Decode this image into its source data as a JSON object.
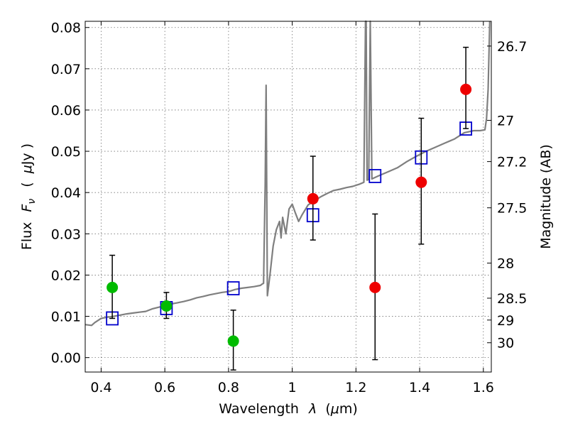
{
  "chart_data": {
    "type": "scatter",
    "xlabel_text": "Wavelength",
    "xlabel_symbol": "λ",
    "xlabel_unit_open": "(",
    "xlabel_unit_mu": "μ",
    "xlabel_unit_rest": "m)",
    "ylabel_text": "Flux",
    "ylabel_symbol": "F",
    "ylabel_sub": "ν",
    "ylabel_unit_open": "(",
    "ylabel_unit_mu": "μ",
    "ylabel_unit_rest": "Jy )",
    "y2label": "Magnitude (AB)",
    "xlim": [
      0.35,
      1.625
    ],
    "ylim": [
      -0.0035,
      0.0815
    ],
    "grid": true,
    "x_ticks": [
      0.4,
      0.6,
      0.8,
      1.0,
      1.2,
      1.4,
      1.6
    ],
    "x_tick_labels": [
      "0.4",
      "0.6",
      "0.8",
      "1",
      "1.2",
      "1.4",
      "1.6"
    ],
    "y_ticks": [
      0.0,
      0.01,
      0.02,
      0.03,
      0.04,
      0.05,
      0.06,
      0.07,
      0.08
    ],
    "y_tick_labels": [
      "0.00",
      "0.01",
      "0.02",
      "0.03",
      "0.04",
      "0.05",
      "0.06",
      "0.07",
      "0.08"
    ],
    "y2_ticks": [
      {
        "label": "26.7",
        "flux": 0.0755
      },
      {
        "label": "27",
        "flux": 0.0575
      },
      {
        "label": "27.2",
        "flux": 0.0475
      },
      {
        "label": "27.5",
        "flux": 0.0363
      },
      {
        "label": "28",
        "flux": 0.0229
      },
      {
        "label": "28.5",
        "flux": 0.0144
      },
      {
        "label": "29",
        "flux": 0.0091
      },
      {
        "label": "30",
        "flux": 0.0036
      }
    ],
    "colors": {
      "sed_line": "#7f7f7f",
      "model_box": "#0000cc",
      "optical_points": "#00bb00",
      "nir_points": "#ee0000",
      "errorbar": "#000000"
    },
    "sed_curve": {
      "x": [
        0.35,
        0.37,
        0.38,
        0.39,
        0.4,
        0.42,
        0.44,
        0.46,
        0.48,
        0.5,
        0.52,
        0.54,
        0.56,
        0.58,
        0.6,
        0.62,
        0.64,
        0.66,
        0.68,
        0.7,
        0.72,
        0.74,
        0.76,
        0.78,
        0.8,
        0.82,
        0.84,
        0.86,
        0.88,
        0.9,
        0.905,
        0.91,
        0.915,
        0.918,
        0.922,
        0.93,
        0.94,
        0.95,
        0.96,
        0.965,
        0.97,
        0.98,
        0.99,
        1.0,
        1.01,
        1.02,
        1.03,
        1.05,
        1.07,
        1.09,
        1.11,
        1.13,
        1.15,
        1.17,
        1.19,
        1.21,
        1.225,
        1.23,
        1.232,
        1.235,
        1.24,
        1.245,
        1.25,
        1.27,
        1.3,
        1.33,
        1.36,
        1.39,
        1.42,
        1.45,
        1.48,
        1.51,
        1.54,
        1.57,
        1.59,
        1.605,
        1.61,
        1.615,
        1.62
      ],
      "y": [
        0.008,
        0.0078,
        0.0085,
        0.009,
        0.0095,
        0.0098,
        0.01,
        0.0103,
        0.0106,
        0.0108,
        0.011,
        0.0112,
        0.0118,
        0.0122,
        0.0126,
        0.013,
        0.0133,
        0.0136,
        0.014,
        0.0145,
        0.0148,
        0.0152,
        0.0155,
        0.0158,
        0.016,
        0.0165,
        0.0168,
        0.017,
        0.0172,
        0.0175,
        0.0178,
        0.018,
        0.042,
        0.066,
        0.015,
        0.02,
        0.027,
        0.031,
        0.033,
        0.029,
        0.034,
        0.03,
        0.036,
        0.0372,
        0.035,
        0.033,
        0.0345,
        0.037,
        0.038,
        0.039,
        0.0398,
        0.0405,
        0.0408,
        0.0412,
        0.0415,
        0.042,
        0.0425,
        0.083,
        0.083,
        0.043,
        0.0432,
        0.083,
        0.0433,
        0.044,
        0.045,
        0.046,
        0.0475,
        0.0488,
        0.05,
        0.051,
        0.052,
        0.053,
        0.0545,
        0.055,
        0.055,
        0.0552,
        0.058,
        0.065,
        0.082
      ]
    },
    "series": [
      {
        "marker": "square",
        "x": [
          0.435,
          0.605,
          0.815,
          1.065,
          1.26,
          1.405,
          1.545
        ],
        "y": [
          0.0095,
          0.012,
          0.0168,
          0.0345,
          0.044,
          0.0485,
          0.0555
        ]
      },
      {
        "marker": "circle",
        "x": [
          0.435,
          0.605,
          0.815
        ],
        "y": [
          0.017,
          0.0125,
          0.004
        ],
        "yerr_low": [
          0.0095,
          0.0095,
          -0.003
        ],
        "yerr_high": [
          0.0248,
          0.0158,
          0.0115
        ]
      },
      {
        "marker": "circle",
        "x": [
          1.065,
          1.26,
          1.405,
          1.545
        ],
        "y": [
          0.0385,
          0.017,
          0.0425,
          0.065
        ],
        "yerr_low": [
          0.0285,
          -0.0005,
          0.0275,
          0.0555
        ],
        "yerr_high": [
          0.0488,
          0.0348,
          0.058,
          0.0752
        ]
      }
    ]
  }
}
